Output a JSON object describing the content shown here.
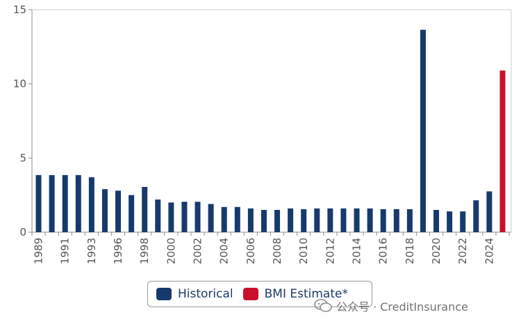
{
  "chart_data": {
    "type": "bar",
    "x_tick_labels": [
      "1989",
      "1991",
      "1993",
      "1996",
      "1998",
      "2000",
      "2002",
      "2004",
      "2006",
      "2008",
      "2010",
      "2012",
      "2014",
      "2016",
      "2018",
      "2020",
      "2022",
      "2024"
    ],
    "y_ticks": [
      0,
      5,
      10,
      15
    ],
    "ylim": [
      0,
      15
    ],
    "grid": false,
    "legend_position": "bottom",
    "series": [
      {
        "name": "Historical",
        "color": "#173a6d",
        "values": [
          3.85,
          3.85,
          3.85,
          3.85,
          3.7,
          2.9,
          2.8,
          2.5,
          3.05,
          2.2,
          2.0,
          2.05,
          2.05,
          1.9,
          1.7,
          1.7,
          1.6,
          1.5,
          1.5,
          1.6,
          1.55,
          1.6,
          1.6,
          1.6,
          1.6,
          1.6,
          1.55,
          1.55,
          1.55,
          13.65,
          1.5,
          1.4,
          1.4,
          2.15,
          2.75
        ]
      },
      {
        "name": "BMI Estimate*",
        "color": "#c8102e",
        "values": [
          10.9
        ]
      }
    ]
  },
  "watermark": {
    "text": "公众号 · CreditInsurance",
    "icon": "wechat-icon"
  }
}
